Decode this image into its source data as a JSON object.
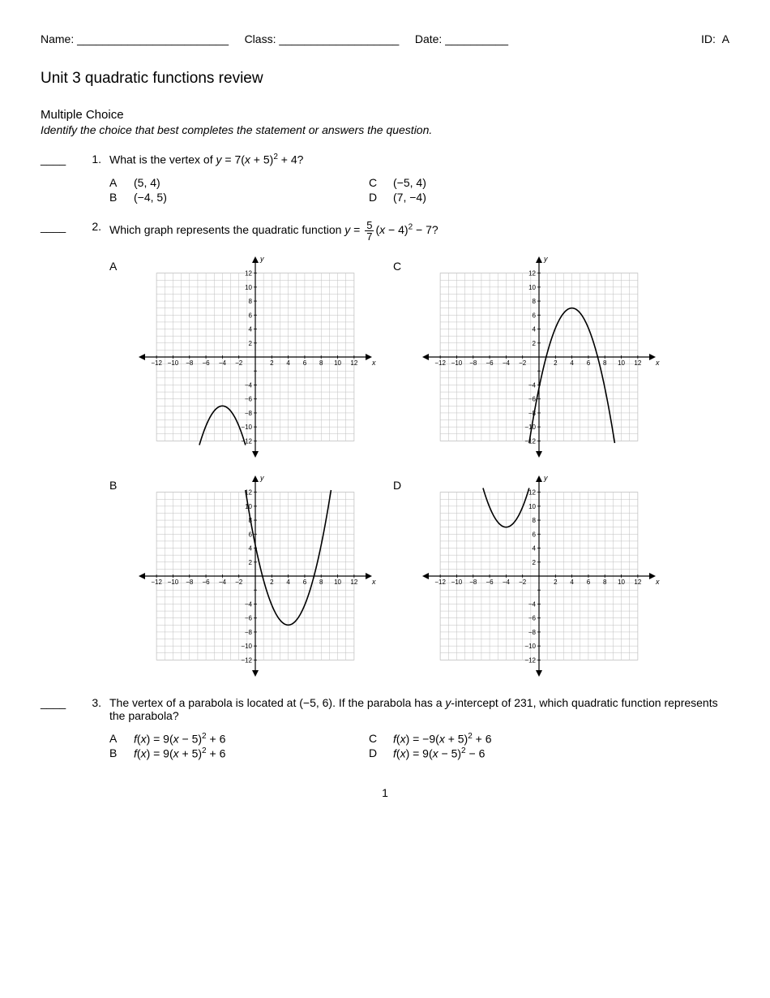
{
  "header": {
    "name_label": "Name: ________________________",
    "class_label": "Class: ___________________",
    "date_label": "Date: __________",
    "id_label": "ID:",
    "id_value": "A"
  },
  "title": "Unit 3 quadratic functions review",
  "section": "Multiple Choice",
  "instructions": "Identify the choice that best completes the statement or answers the question.",
  "blank": "____",
  "q1": {
    "num": "1.",
    "text_pre": "What is the vertex of ",
    "text_post": "?",
    "choices": {
      "A": "(5, 4)",
      "B": "(−4, 5)",
      "C": "(−5, 4)",
      "D": "(7, −4)"
    }
  },
  "q2": {
    "num": "2.",
    "text_pre": "Which graph represents the quadratic function ",
    "text_post": "?",
    "labels": {
      "A": "A",
      "B": "B",
      "C": "C",
      "D": "D"
    },
    "axis": {
      "x_label": "x",
      "y_label": "y",
      "xlim": [
        -13,
        13
      ],
      "ylim": [
        -13,
        13
      ],
      "ticks": [
        -12,
        -10,
        -8,
        -6,
        -4,
        -2,
        2,
        4,
        6,
        8,
        10,
        12
      ],
      "ntick_label": "−2"
    },
    "graphs": {
      "A": {
        "a": -0.714,
        "h": -4,
        "k": -7,
        "color": "#000000"
      },
      "B": {
        "a": 0.714,
        "h": 4,
        "k": -7,
        "color": "#000000"
      },
      "C": {
        "a": -0.714,
        "h": 4,
        "k": 7,
        "color": "#000000"
      },
      "D": {
        "a": 0.714,
        "h": -4,
        "k": 7,
        "color": "#000000"
      }
    },
    "style": {
      "grid_color": "#bfbfbf",
      "axis_color": "#000000",
      "bg": "#ffffff",
      "tick_fontsize": 8,
      "line_width": 1.6
    }
  },
  "q3": {
    "num": "3.",
    "text": "The vertex of a parabola is located at (−5, 6). If the parabola has a y-intercept of 231, which quadratic function represents the parabola?",
    "y_em": "y"
  },
  "page_number": "1"
}
